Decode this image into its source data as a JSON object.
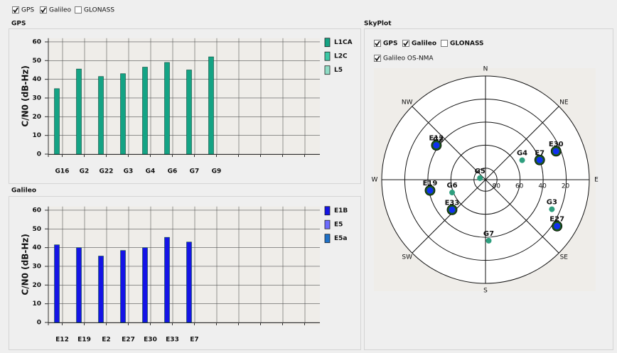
{
  "filters": [
    {
      "label": "GPS",
      "checked": true
    },
    {
      "label": "Galileo",
      "checked": true
    },
    {
      "label": "GLONASS",
      "checked": false
    }
  ],
  "chart_data": [
    {
      "type": "bar",
      "title": "GPS",
      "y_label": "C/N0 (dB-Hz)",
      "categories": [
        "G16",
        "G2",
        "G22",
        "G3",
        "G4",
        "G6",
        "G7",
        "G9",
        null,
        null,
        null,
        null
      ],
      "series": [
        {
          "name": "L1CA",
          "color": "#14a384",
          "values": [
            35,
            45.5,
            41.5,
            43,
            46.5,
            49,
            45,
            52,
            null,
            null,
            null,
            null
          ]
        },
        {
          "name": "L2C",
          "color": "#3cc8a6",
          "values": [
            0,
            0,
            0,
            0,
            0,
            0,
            0,
            0,
            0,
            0,
            0,
            0
          ]
        },
        {
          "name": "L5",
          "color": "#8fdcc6",
          "values": [
            0,
            0,
            0,
            0,
            0,
            0,
            0,
            0,
            0,
            0,
            0,
            0
          ]
        }
      ],
      "ylim": [
        0,
        62
      ],
      "yticks": [
        0,
        10,
        20,
        30,
        40,
        50,
        60
      ],
      "grid": true
    },
    {
      "type": "bar",
      "title": "Galileo",
      "y_label": "C/N0 (dB-Hz)",
      "categories": [
        "E12",
        "E19",
        "E2",
        "E27",
        "E30",
        "E33",
        "E7",
        null,
        null,
        null,
        null,
        null
      ],
      "series": [
        {
          "name": "E1B",
          "color": "#1414e6",
          "values": [
            41.5,
            40,
            35.5,
            38.5,
            40,
            45.5,
            43,
            null,
            null,
            null,
            null,
            null
          ]
        },
        {
          "name": "E5",
          "color": "#6c6cff",
          "values": [
            0,
            0,
            0,
            0,
            0,
            0,
            0,
            0,
            0,
            0,
            0,
            0
          ]
        },
        {
          "name": "E5a",
          "color": "#1d70c8",
          "values": [
            0,
            0,
            0,
            0,
            0,
            0,
            0,
            0,
            0,
            0,
            0,
            0
          ]
        }
      ],
      "ylim": [
        0,
        62
      ],
      "yticks": [
        0,
        10,
        20,
        30,
        40,
        50,
        60
      ],
      "grid": true
    }
  ],
  "skyplot": {
    "title": "SkyPlot",
    "filters": [
      {
        "label": "GPS",
        "checked": true,
        "color": "#169a74"
      },
      {
        "label": "Galileo",
        "checked": true,
        "color": "#1414d8"
      },
      {
        "label": "GLONASS",
        "checked": false,
        "color": "#e01010"
      }
    ],
    "os_nma": {
      "label": "Galileo OS-NMA",
      "checked": true
    },
    "directions": [
      "N",
      "NE",
      "E",
      "SE",
      "S",
      "SW",
      "W",
      "NW"
    ],
    "rlim": [
      90,
      0
    ],
    "elevation_ticks": [
      80,
      60,
      40,
      20
    ],
    "satellites": [
      {
        "name": "G2",
        "system": "GPS",
        "azimuth": 305,
        "elevation": 40
      },
      {
        "name": "E12",
        "system": "Galileo",
        "azimuth": 305,
        "elevation": 38
      },
      {
        "name": "G4",
        "system": "GPS",
        "azimuth": 62,
        "elevation": 54
      },
      {
        "name": "E7",
        "system": "Galileo",
        "azimuth": 70,
        "elevation": 40
      },
      {
        "name": "E30",
        "system": "Galileo",
        "azimuth": 68,
        "elevation": 24
      },
      {
        "name": "G5",
        "system": "GPS",
        "azimuth": 286,
        "elevation": 85
      },
      {
        "name": "G6",
        "system": "GPS",
        "azimuth": 249,
        "elevation": 59
      },
      {
        "name": "E19",
        "system": "Galileo",
        "azimuth": 259,
        "elevation": 41
      },
      {
        "name": "E33",
        "system": "Galileo",
        "azimuth": 228,
        "elevation": 51
      },
      {
        "name": "G3",
        "system": "GPS",
        "azimuth": 114,
        "elevation": 27
      },
      {
        "name": "E27",
        "system": "Galileo",
        "azimuth": 123,
        "elevation": 16
      },
      {
        "name": "G7",
        "system": "GPS",
        "azimuth": 177,
        "elevation": 37
      }
    ]
  }
}
